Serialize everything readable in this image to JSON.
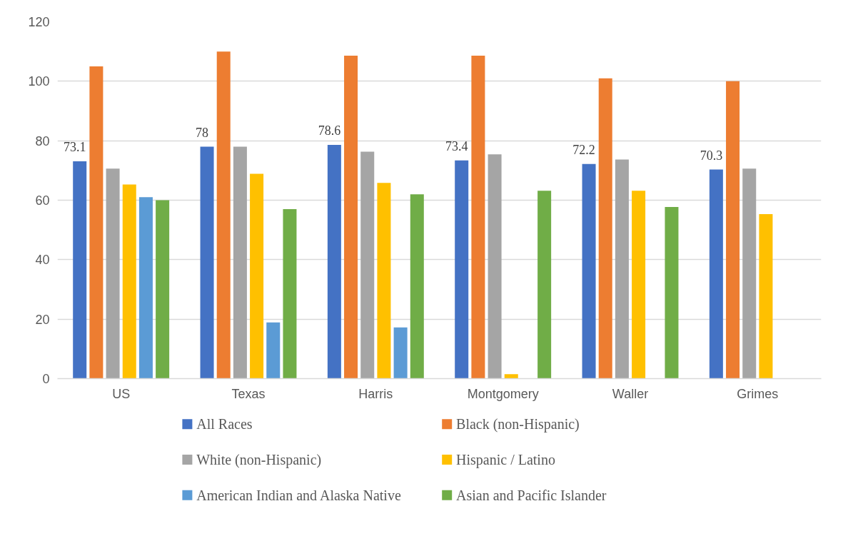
{
  "chart_data": {
    "type": "bar",
    "categories": [
      "US",
      "Texas",
      "Harris",
      "Montgomery",
      "Waller",
      "Grimes"
    ],
    "series": [
      {
        "name": "All Races",
        "color": "#4472c4",
        "values": [
          73.1,
          78,
          78.6,
          73.4,
          72.2,
          70.3
        ],
        "data_labels": true
      },
      {
        "name": "Black (non-Hispanic)",
        "color": "#ed7d31",
        "values": [
          105,
          110,
          108.6,
          108.6,
          101,
          100
        ]
      },
      {
        "name": "White (non-Hispanic)",
        "color": "#a5a5a5",
        "values": [
          70.6,
          78,
          76.3,
          75.4,
          73.7,
          70.6
        ]
      },
      {
        "name": "Hispanic / Latino",
        "color": "#ffc000",
        "values": [
          65.3,
          68.9,
          65.8,
          1.5,
          63.2,
          55.3
        ]
      },
      {
        "name": "American Indian and Alaska Native",
        "color": "#5b9bd5",
        "values": [
          61,
          18.9,
          17.2,
          null,
          null,
          null
        ]
      },
      {
        "name": "Asian and Pacific Islander",
        "color": "#70ad47",
        "values": [
          60,
          57,
          62,
          63.2,
          57.7,
          null
        ]
      }
    ],
    "ylim": [
      0,
      120
    ],
    "yticks": [
      0,
      20,
      40,
      60,
      80,
      100,
      120
    ],
    "grid": "y",
    "legend": "bottom"
  }
}
